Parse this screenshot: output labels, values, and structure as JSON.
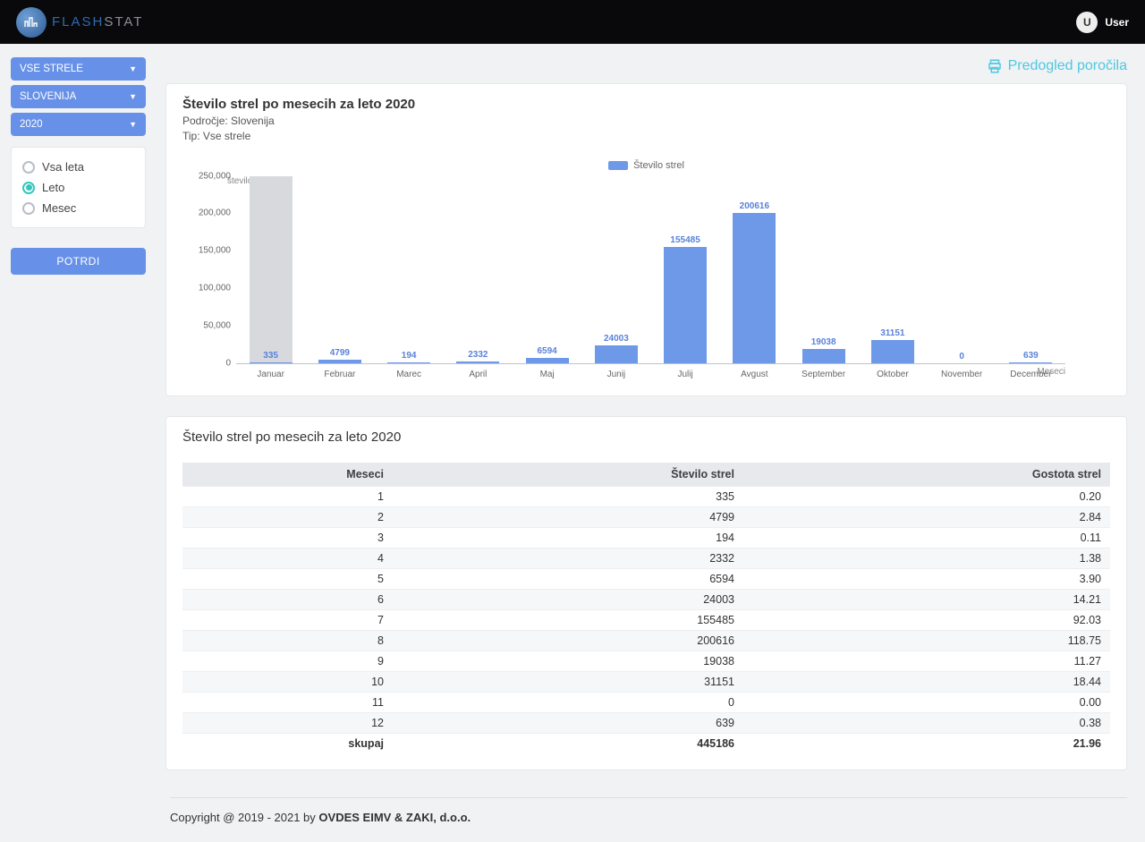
{
  "header": {
    "brand_part1": "FLASH",
    "brand_part2": "STAT",
    "user_initial": "U",
    "user_label": "User"
  },
  "sidebar": {
    "dd_type": "VSE STRELE",
    "dd_region": "SLOVENIJA",
    "dd_year": "2020",
    "radios": {
      "all": "Vsa leta",
      "year": "Leto",
      "month": "Mesec",
      "selected": "year"
    },
    "confirm": "POTRDI"
  },
  "report_link": "Predogled poročila",
  "chart": {
    "title": "Število strel po mesecih za leto 2020",
    "sub1": "Področje: Slovenija",
    "sub2": "Tip: Vse strele",
    "legend": "Število strel",
    "y_axis_title": "število strel",
    "x_axis_title": "Meseci",
    "type": "bar",
    "ylim": [
      0,
      250000
    ],
    "yticks": [
      0,
      50000,
      100000,
      150000,
      200000,
      250000
    ],
    "ytick_labels": [
      "0",
      "50,000",
      "100,000",
      "150,000",
      "200,000",
      "250,000"
    ],
    "bar_color": "#6e98e8",
    "shade_color": "#d7d9dd",
    "value_label_color": "#5a82d8",
    "categories": [
      "Januar",
      "Februar",
      "Marec",
      "April",
      "Maj",
      "Junij",
      "Julij",
      "Avgust",
      "September",
      "Oktober",
      "November",
      "December"
    ],
    "values": [
      335,
      4799,
      194,
      2332,
      6594,
      24003,
      155485,
      200616,
      19038,
      31151,
      0,
      639
    ]
  },
  "table": {
    "title": "Število strel po mesecih za leto 2020",
    "columns": [
      "Meseci",
      "Število strel",
      "Gostota strel"
    ],
    "rows": [
      [
        "1",
        "335",
        "0.20"
      ],
      [
        "2",
        "4799",
        "2.84"
      ],
      [
        "3",
        "194",
        "0.11"
      ],
      [
        "4",
        "2332",
        "1.38"
      ],
      [
        "5",
        "6594",
        "3.90"
      ],
      [
        "6",
        "24003",
        "14.21"
      ],
      [
        "7",
        "155485",
        "92.03"
      ],
      [
        "8",
        "200616",
        "118.75"
      ],
      [
        "9",
        "19038",
        "11.27"
      ],
      [
        "10",
        "31151",
        "18.44"
      ],
      [
        "11",
        "0",
        "0.00"
      ],
      [
        "12",
        "639",
        "0.38"
      ]
    ],
    "total": [
      "skupaj",
      "445186",
      "21.96"
    ]
  },
  "footer": {
    "prefix": "Copyright @ 2019 - 2021 by ",
    "owner": "OVDES EIMV & ZAKI, d.o.o."
  }
}
